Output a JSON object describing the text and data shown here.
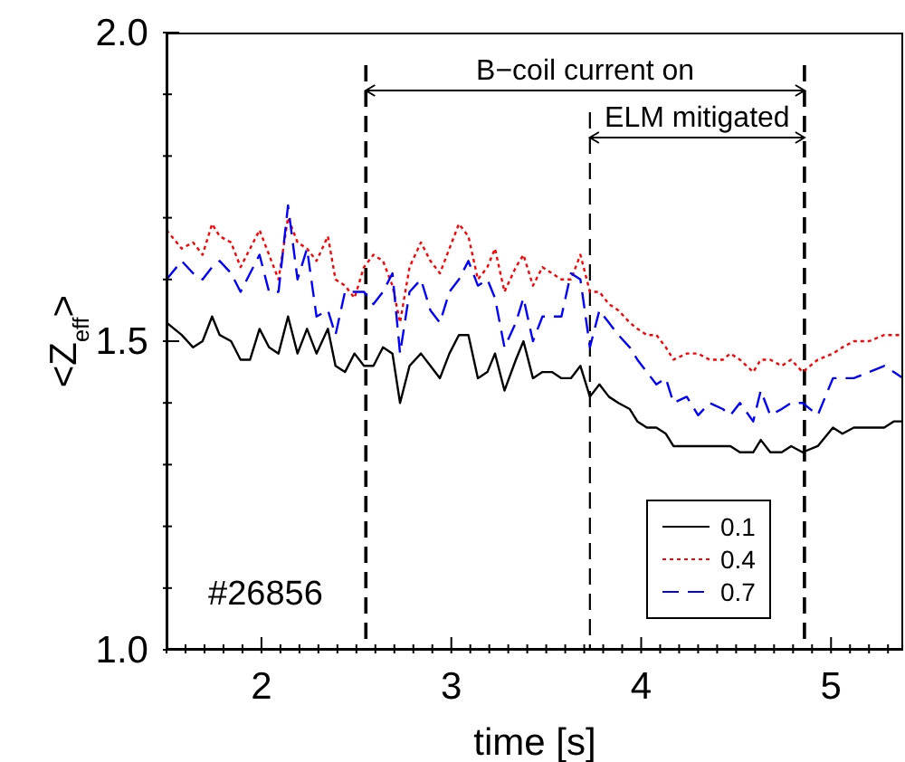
{
  "chart_data": {
    "type": "line",
    "xlabel": "time [s]",
    "ylabel": "<Z$_{eff}$>",
    "x": [
      1.5,
      1.58,
      1.64,
      1.69,
      1.74,
      1.78,
      1.84,
      1.89,
      1.94,
      1.99,
      2.04,
      2.09,
      2.14,
      2.19,
      2.24,
      2.29,
      2.35,
      2.39,
      2.44,
      2.49,
      2.54,
      2.59,
      2.64,
      2.69,
      2.73,
      2.78,
      2.84,
      2.89,
      2.94,
      2.99,
      3.04,
      3.09,
      3.14,
      3.19,
      3.23,
      3.28,
      3.34,
      3.38,
      3.43,
      3.48,
      3.53,
      3.58,
      3.63,
      3.68,
      3.73,
      3.78,
      3.83,
      3.88,
      3.94,
      3.98,
      4.03,
      4.08,
      4.13,
      4.17,
      4.24,
      4.3,
      4.36,
      4.43,
      4.47,
      4.52,
      4.59,
      4.63,
      4.68,
      4.74,
      4.79,
      4.85,
      4.93,
      5.01,
      5.06,
      5.12,
      5.2,
      5.28,
      5.33,
      5.38
    ],
    "series": [
      {
        "name": "0.1",
        "color": "#000000",
        "line_style": "solid",
        "values": [
          1.53,
          1.51,
          1.49,
          1.5,
          1.54,
          1.51,
          1.5,
          1.47,
          1.47,
          1.52,
          1.49,
          1.48,
          1.54,
          1.48,
          1.52,
          1.48,
          1.52,
          1.46,
          1.45,
          1.48,
          1.46,
          1.46,
          1.49,
          1.48,
          1.4,
          1.46,
          1.48,
          1.46,
          1.44,
          1.48,
          1.51,
          1.51,
          1.44,
          1.45,
          1.48,
          1.42,
          1.47,
          1.5,
          1.44,
          1.45,
          1.45,
          1.44,
          1.44,
          1.46,
          1.41,
          1.43,
          1.41,
          1.4,
          1.39,
          1.37,
          1.36,
          1.36,
          1.35,
          1.33,
          1.33,
          1.33,
          1.33,
          1.33,
          1.33,
          1.32,
          1.32,
          1.34,
          1.32,
          1.32,
          1.33,
          1.32,
          1.33,
          1.36,
          1.35,
          1.36,
          1.36,
          1.36,
          1.37,
          1.37
        ]
      },
      {
        "name": "0.4",
        "color": "#ff0000",
        "line_style": "dotted",
        "values": [
          1.68,
          1.65,
          1.66,
          1.64,
          1.69,
          1.67,
          1.66,
          1.62,
          1.65,
          1.68,
          1.64,
          1.6,
          1.7,
          1.66,
          1.65,
          1.63,
          1.67,
          1.6,
          1.59,
          1.57,
          1.62,
          1.64,
          1.63,
          1.59,
          1.53,
          1.62,
          1.66,
          1.63,
          1.61,
          1.65,
          1.69,
          1.67,
          1.6,
          1.62,
          1.65,
          1.58,
          1.62,
          1.64,
          1.59,
          1.62,
          1.61,
          1.6,
          1.6,
          1.64,
          1.58,
          1.58,
          1.56,
          1.55,
          1.53,
          1.52,
          1.51,
          1.51,
          1.49,
          1.47,
          1.48,
          1.48,
          1.47,
          1.47,
          1.48,
          1.47,
          1.45,
          1.47,
          1.47,
          1.46,
          1.47,
          1.45,
          1.47,
          1.48,
          1.49,
          1.5,
          1.5,
          1.51,
          1.51,
          1.51
        ]
      },
      {
        "name": "0.7",
        "color": "#0000ff",
        "line_style": "dashed",
        "values": [
          1.6,
          1.63,
          1.61,
          1.6,
          1.62,
          1.63,
          1.61,
          1.58,
          1.61,
          1.64,
          1.58,
          1.58,
          1.72,
          1.6,
          1.65,
          1.54,
          1.55,
          1.51,
          1.58,
          1.58,
          1.58,
          1.56,
          1.58,
          1.61,
          1.48,
          1.58,
          1.6,
          1.55,
          1.53,
          1.58,
          1.6,
          1.63,
          1.59,
          1.6,
          1.57,
          1.49,
          1.53,
          1.57,
          1.5,
          1.54,
          1.54,
          1.54,
          1.61,
          1.6,
          1.49,
          1.55,
          1.53,
          1.51,
          1.49,
          1.47,
          1.45,
          1.43,
          1.44,
          1.4,
          1.41,
          1.38,
          1.4,
          1.39,
          1.38,
          1.4,
          1.37,
          1.42,
          1.38,
          1.39,
          1.4,
          1.4,
          1.38,
          1.44,
          1.44,
          1.44,
          1.45,
          1.46,
          1.45,
          1.44
        ]
      }
    ],
    "xlim": [
      1.5,
      5.38
    ],
    "xticks": [
      {
        "value": 1.5,
        "label": null
      },
      {
        "value": 1.6,
        "label": null
      },
      {
        "value": 1.7,
        "label": null
      },
      {
        "value": 1.8,
        "label": null
      },
      {
        "value": 1.9,
        "label": null
      },
      2,
      {
        "value": 2.1,
        "label": null
      },
      {
        "value": 2.2,
        "label": null
      },
      {
        "value": 2.3,
        "label": null
      },
      {
        "value": 2.4,
        "label": null
      },
      {
        "value": 2.5,
        "label": null
      },
      {
        "value": 2.6,
        "label": null
      },
      {
        "value": 2.7,
        "label": null
      },
      {
        "value": 2.8,
        "label": null
      },
      {
        "value": 2.9,
        "label": null
      },
      3,
      {
        "value": 3.1,
        "label": null
      },
      {
        "value": 3.2,
        "label": null
      },
      {
        "value": 3.3,
        "label": null
      },
      {
        "value": 3.4,
        "label": null
      },
      {
        "value": 3.5,
        "label": null
      },
      {
        "value": 3.6,
        "label": null
      },
      {
        "value": 3.7,
        "label": null
      },
      {
        "value": 3.8,
        "label": null
      },
      {
        "value": 3.9,
        "label": null
      },
      4,
      {
        "value": 4.1,
        "label": null
      },
      {
        "value": 4.2,
        "label": null
      },
      {
        "value": 4.3,
        "label": null
      },
      {
        "value": 4.4,
        "label": null
      },
      {
        "value": 4.5,
        "label": null
      },
      {
        "value": 4.6,
        "label": null
      },
      {
        "value": 4.7,
        "label": null
      },
      {
        "value": 4.8,
        "label": null
      },
      {
        "value": 4.9,
        "label": null
      },
      5,
      {
        "value": 5.1,
        "label": null
      },
      {
        "value": 5.2,
        "label": null
      },
      {
        "value": 5.3,
        "label": null
      }
    ],
    "ylim": [
      1.0,
      2.0
    ],
    "yticks": [
      {
        "value": 1.0,
        "label": "1.0"
      },
      {
        "value": 1.1,
        "label": null
      },
      {
        "value": 1.2,
        "label": null
      },
      {
        "value": 1.3,
        "label": null
      },
      {
        "value": 1.4,
        "label": null
      },
      1.5,
      {
        "value": 1.6,
        "label": null
      },
      {
        "value": 1.7,
        "label": null
      },
      {
        "value": 1.8,
        "label": null
      },
      {
        "value": 1.9,
        "label": null
      },
      {
        "value": 2.0,
        "label": "2.0"
      }
    ],
    "ref_lines": [
      {
        "axis": "x",
        "value": 2.55,
        "line_style": "dashed",
        "color": "#000000"
      },
      {
        "axis": "x",
        "value": 3.73,
        "line_style": "dashed",
        "color": "#000000"
      },
      {
        "axis": "x",
        "value": 4.86,
        "line_style": "dashed",
        "color": "#000000"
      }
    ],
    "annotations": [
      "B−coil current on",
      "ELM mitigated",
      "#26856"
    ],
    "grid": false,
    "legend": "bottom right",
    "marker": "none"
  }
}
